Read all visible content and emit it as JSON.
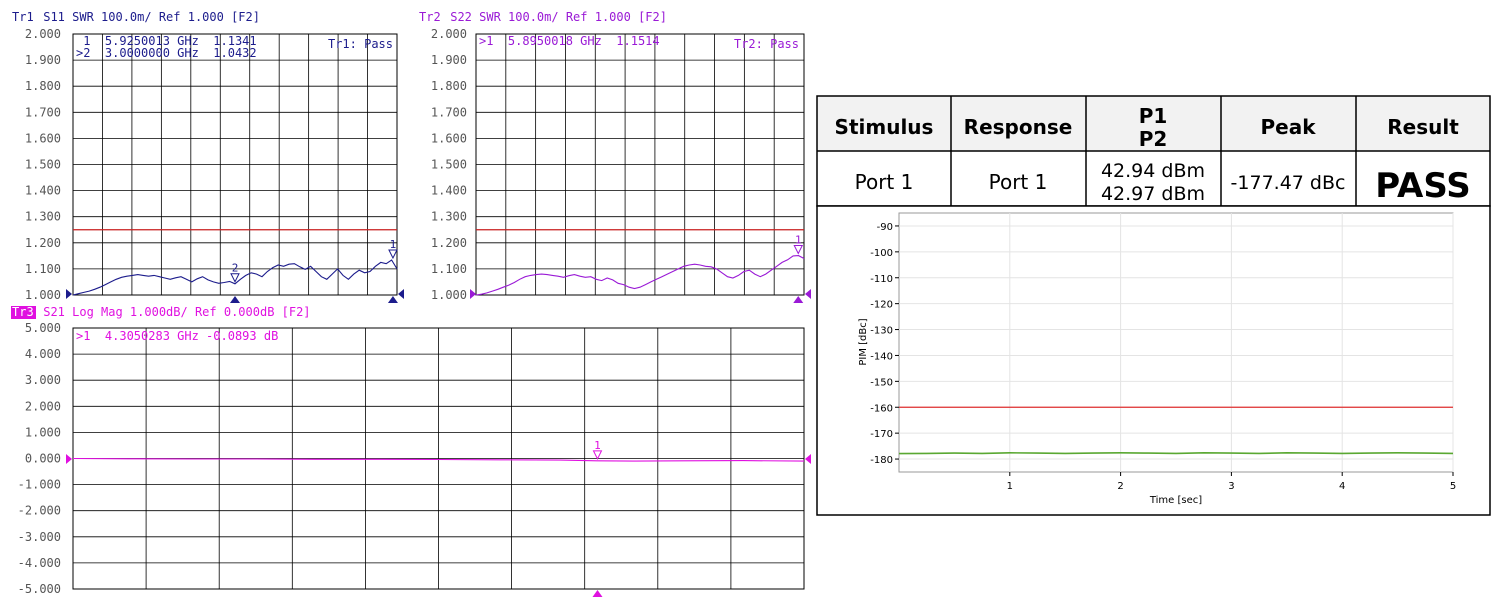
{
  "chart_data": [
    {
      "id": "tr1",
      "type": "line",
      "title": "Tr1 S11 SWR 100.0m/ Ref 1.000 [F2]",
      "trace_label": "Tr1",
      "header_rest": " S11 SWR 100.0m/ Ref 1.000 [F2]",
      "status": "Tr1: Pass",
      "markers_text": [
        " 1  5.9250013 GHz  1.1341",
        ">2  3.0000000 GHz  1.0432"
      ],
      "y_ticks": [
        "2.000",
        "1.900",
        "1.800",
        "1.700",
        "1.600",
        "1.500",
        "1.400",
        "1.300",
        "1.200",
        "1.100",
        "1.000"
      ],
      "ylim": [
        1.0,
        2.0
      ],
      "xlim": [
        0.0,
        6.0
      ],
      "x_divisions": 11,
      "limit_line": 1.25,
      "x": [
        0.0,
        0.1,
        0.2,
        0.3,
        0.4,
        0.5,
        0.6,
        0.7,
        0.8,
        0.9,
        1.0,
        1.1,
        1.2,
        1.3,
        1.4,
        1.5,
        1.6,
        1.7,
        1.8,
        1.9,
        2.0,
        2.1,
        2.2,
        2.3,
        2.4,
        2.5,
        2.6,
        2.7,
        2.8,
        2.9,
        3.0,
        3.1,
        3.2,
        3.3,
        3.4,
        3.5,
        3.6,
        3.7,
        3.8,
        3.9,
        4.0,
        4.1,
        4.2,
        4.3,
        4.4,
        4.5,
        4.6,
        4.7,
        4.8,
        4.9,
        5.0,
        5.1,
        5.2,
        5.3,
        5.4,
        5.5,
        5.6,
        5.7,
        5.8,
        5.9,
        6.0
      ],
      "y": [
        1.0,
        1.005,
        1.01,
        1.015,
        1.022,
        1.03,
        1.04,
        1.05,
        1.06,
        1.068,
        1.072,
        1.075,
        1.078,
        1.075,
        1.072,
        1.075,
        1.07,
        1.065,
        1.06,
        1.066,
        1.07,
        1.06,
        1.05,
        1.062,
        1.07,
        1.058,
        1.05,
        1.045,
        1.048,
        1.052,
        1.043,
        1.06,
        1.075,
        1.085,
        1.08,
        1.07,
        1.09,
        1.105,
        1.115,
        1.11,
        1.118,
        1.12,
        1.108,
        1.098,
        1.11,
        1.09,
        1.07,
        1.06,
        1.08,
        1.1,
        1.075,
        1.06,
        1.08,
        1.095,
        1.085,
        1.09,
        1.11,
        1.125,
        1.12,
        1.134,
        1.1
      ],
      "line_color": "#1c1c8c",
      "label_color": "#1c1c8c",
      "markers": [
        {
          "label": "2",
          "x": 3.0,
          "y": 1.0432
        },
        {
          "label": "1",
          "x": 5.9250013,
          "y": 1.1341
        }
      ]
    },
    {
      "id": "tr2",
      "type": "line",
      "title": "Tr2 S22 SWR 100.0m/ Ref 1.000 [F2]",
      "trace_label": "Tr2",
      "header_rest": " S22 SWR 100.0m/ Ref 1.000 [F2]",
      "status": "Tr2: Pass",
      "markers_text": [
        ">1  5.8950018 GHz  1.1514"
      ],
      "y_ticks": [
        "2.000",
        "1.900",
        "1.800",
        "1.700",
        "1.600",
        "1.500",
        "1.400",
        "1.300",
        "1.200",
        "1.100",
        "1.000"
      ],
      "ylim": [
        1.0,
        2.0
      ],
      "xlim": [
        0.0,
        6.0
      ],
      "x_divisions": 11,
      "limit_line": 1.25,
      "x": [
        0.0,
        0.1,
        0.2,
        0.3,
        0.4,
        0.5,
        0.6,
        0.7,
        0.8,
        0.9,
        1.0,
        1.1,
        1.2,
        1.3,
        1.4,
        1.5,
        1.6,
        1.7,
        1.8,
        1.9,
        2.0,
        2.1,
        2.2,
        2.3,
        2.4,
        2.5,
        2.6,
        2.7,
        2.8,
        2.9,
        3.0,
        3.1,
        3.2,
        3.3,
        3.4,
        3.5,
        3.6,
        3.7,
        3.8,
        3.9,
        4.0,
        4.1,
        4.2,
        4.3,
        4.4,
        4.5,
        4.6,
        4.7,
        4.8,
        4.9,
        5.0,
        5.1,
        5.2,
        5.3,
        5.4,
        5.5,
        5.6,
        5.7,
        5.8,
        5.9,
        6.0
      ],
      "y": [
        1.0,
        1.003,
        1.008,
        1.015,
        1.022,
        1.03,
        1.038,
        1.048,
        1.06,
        1.07,
        1.075,
        1.078,
        1.08,
        1.078,
        1.075,
        1.072,
        1.068,
        1.074,
        1.078,
        1.072,
        1.068,
        1.07,
        1.06,
        1.055,
        1.065,
        1.058,
        1.045,
        1.04,
        1.03,
        1.025,
        1.03,
        1.04,
        1.05,
        1.06,
        1.07,
        1.08,
        1.09,
        1.1,
        1.11,
        1.115,
        1.118,
        1.115,
        1.11,
        1.108,
        1.1,
        1.085,
        1.07,
        1.065,
        1.075,
        1.09,
        1.095,
        1.08,
        1.07,
        1.08,
        1.095,
        1.11,
        1.125,
        1.135,
        1.15,
        1.151,
        1.14
      ],
      "line_color": "#9a1ad6",
      "label_color": "#9a1ad6",
      "markers": [
        {
          "label": "1",
          "x": 5.8950018,
          "y": 1.1514
        }
      ]
    },
    {
      "id": "tr3",
      "type": "line",
      "title": "Tr3 S21 Log Mag 1.000dB/ Ref 0.000dB [F2]",
      "trace_label": "Tr3",
      "header_rest": " S21 Log Mag 1.000dB/ Ref 0.000dB [F2]",
      "markers_text": [
        ">1  4.3050283 GHz -0.0893 dB"
      ],
      "y_ticks": [
        "5.000",
        "4.000",
        "3.000",
        "2.000",
        "1.000",
        "0.000",
        "-1.000",
        "-2.000",
        "-3.000",
        "-4.000",
        "-5.000"
      ],
      "ylim": [
        -5.0,
        5.0
      ],
      "xlim": [
        0.0,
        6.0
      ],
      "x_divisions": 10,
      "x": [
        0.0,
        0.5,
        1.0,
        1.5,
        2.0,
        2.5,
        3.0,
        3.5,
        4.0,
        4.3,
        4.6,
        5.0,
        5.5,
        6.0
      ],
      "y": [
        0.0,
        -0.01,
        -0.02,
        -0.02,
        -0.03,
        -0.03,
        -0.04,
        -0.05,
        -0.06,
        -0.09,
        -0.1,
        -0.09,
        -0.08,
        -0.1
      ],
      "line_color": "#e010e0",
      "label_color": "#e010e0",
      "markers": [
        {
          "label": "1",
          "x": 4.3050283,
          "y": -0.0893
        }
      ]
    },
    {
      "id": "pim",
      "type": "line",
      "xlabel": "Time [sec]",
      "ylabel": "PIM [dBc]",
      "x_ticks": [
        "1",
        "2",
        "3",
        "4",
        "5"
      ],
      "y_ticks": [
        "-90",
        "-100",
        "-110",
        "-120",
        "-130",
        "-140",
        "-150",
        "-160",
        "-170",
        "-180"
      ],
      "xlim": [
        0,
        5
      ],
      "ylim": [
        -185,
        -85
      ],
      "limit_line": -160,
      "x": [
        0.0,
        0.25,
        0.5,
        0.75,
        1.0,
        1.25,
        1.5,
        1.75,
        2.0,
        2.25,
        2.5,
        2.75,
        3.0,
        3.25,
        3.5,
        3.75,
        4.0,
        4.25,
        4.5,
        4.75,
        5.0
      ],
      "y": [
        -177.9,
        -177.8,
        -177.7,
        -177.8,
        -177.6,
        -177.7,
        -177.8,
        -177.7,
        -177.6,
        -177.7,
        -177.8,
        -177.6,
        -177.7,
        -177.8,
        -177.6,
        -177.7,
        -177.8,
        -177.7,
        -177.6,
        -177.7,
        -177.8
      ],
      "line_color": "#5aa832",
      "limit_color": "#e03030"
    }
  ],
  "result_table": {
    "headers": [
      "Stimulus",
      "Response",
      "P1",
      "P2",
      "Peak",
      "Result"
    ],
    "row": {
      "stimulus": "Port 1",
      "response": "Port 1",
      "p1": "42.94 dBm",
      "p2": "42.97 dBm",
      "peak": "-177.47 dBc",
      "result": "PASS"
    }
  },
  "colors": {
    "tr1": "#1c1c8c",
    "tr2": "#9a1ad6",
    "tr3": "#e010e0",
    "limit": "#c81e1e",
    "grid": "#000000",
    "pim_line": "#5aa832",
    "pim_limit": "#e03030",
    "table_header_bg": "#f2f2f2"
  }
}
